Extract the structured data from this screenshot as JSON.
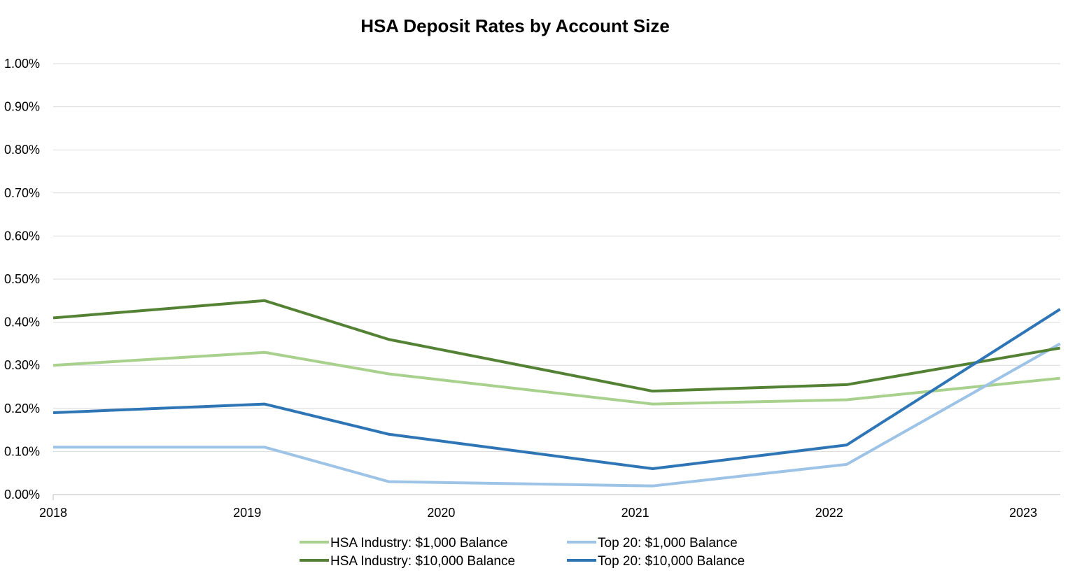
{
  "chart_data": {
    "type": "line",
    "title": "HSA Deposit Rates by Account Size",
    "xlabel": "",
    "ylabel": "",
    "ylim": [
      0,
      1.0
    ],
    "xlim": [
      2018,
      2023.19
    ],
    "grid": true,
    "legend_position": "bottom",
    "y_ticks": [
      "0.00%",
      "0.10%",
      "0.20%",
      "0.30%",
      "0.40%",
      "0.50%",
      "0.60%",
      "0.70%",
      "0.80%",
      "0.90%",
      "1.00%"
    ],
    "x_ticks": [
      "2018",
      "2019",
      "2020",
      "2021",
      "2022",
      "2023"
    ],
    "x": [
      2018.0,
      2019.09,
      2019.73,
      2021.09,
      2022.09,
      2023.19
    ],
    "series": [
      {
        "name": "HSA Industry: $1,000 Balance",
        "color": "#a9d18e",
        "values": [
          0.3,
          0.33,
          0.28,
          0.21,
          0.22,
          0.27
        ]
      },
      {
        "name": "Top 20: $1,000 Balance",
        "color": "#9dc3e6",
        "values": [
          0.11,
          0.11,
          0.03,
          0.02,
          0.07,
          0.35
        ]
      },
      {
        "name": "HSA Industry: $10,000 Balance",
        "color": "#548235",
        "values": [
          0.41,
          0.45,
          0.36,
          0.24,
          0.255,
          0.34
        ]
      },
      {
        "name": "Top 20: $10,000 Balance",
        "color": "#2e75b6",
        "values": [
          0.19,
          0.21,
          0.14,
          0.06,
          0.115,
          0.43
        ]
      }
    ]
  }
}
